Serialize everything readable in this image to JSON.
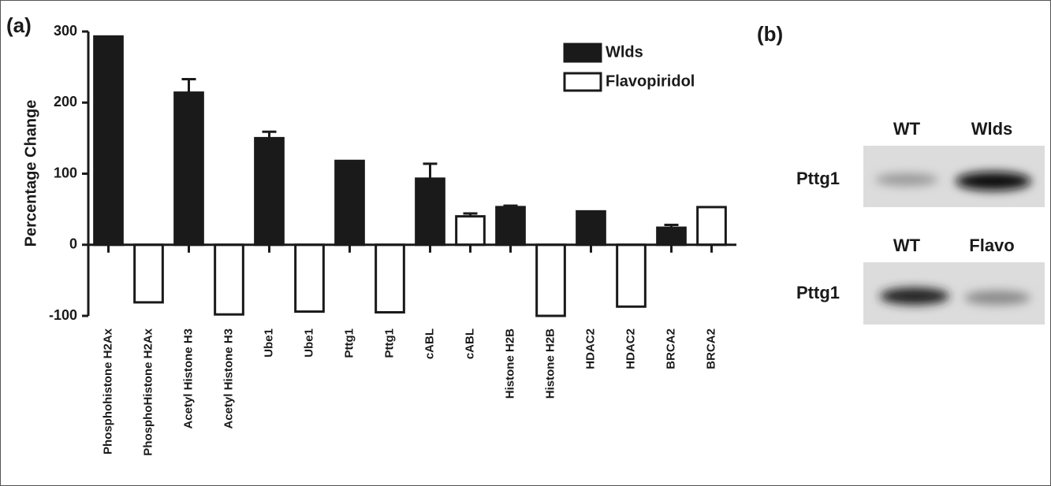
{
  "chart_data": {
    "type": "bar",
    "panel_label": "(a)",
    "y_label": "Percentage Change",
    "categories": [
      "Phosphohistone H2Ax",
      "PhosphoHistone H2Ax",
      "Acetyl Histone H3",
      "Acetyl Histone H3",
      "Ube1",
      "Ube1",
      "Pttg1",
      "Pttg1",
      "cABL",
      "cABL",
      "Histone H2B",
      "Histone H2B",
      "HDAC2",
      "HDAC2",
      "BRCA2",
      "BRCA2"
    ],
    "series": [
      {
        "name": "Wlds",
        "color": "#1a1a1a",
        "values": [
          293,
          null,
          214,
          null,
          150,
          null,
          118,
          null,
          93,
          null,
          53,
          null,
          47,
          null,
          24,
          null
        ],
        "errors": [
          null,
          null,
          19,
          null,
          9,
          null,
          null,
          null,
          21,
          null,
          2,
          null,
          null,
          null,
          4,
          null
        ]
      },
      {
        "name": "Flavopiridol",
        "color": "#ffffff",
        "values": [
          null,
          -81,
          null,
          -98,
          null,
          -94,
          null,
          -95,
          null,
          40,
          null,
          -100,
          null,
          -87,
          null,
          53
        ],
        "errors": [
          null,
          null,
          null,
          null,
          null,
          null,
          null,
          null,
          null,
          4,
          null,
          null,
          null,
          null,
          null,
          null
        ]
      }
    ],
    "ylim": [
      -100,
      300
    ],
    "yticks": [
      -100,
      0,
      100,
      200,
      300
    ]
  },
  "blot": {
    "panel_label": "(b)",
    "top": {
      "lanes": [
        "WT",
        "Wlds"
      ],
      "row_label": "Pttg1"
    },
    "bottom": {
      "lanes": [
        "WT",
        "Flavo"
      ],
      "row_label": "Pttg1"
    }
  }
}
